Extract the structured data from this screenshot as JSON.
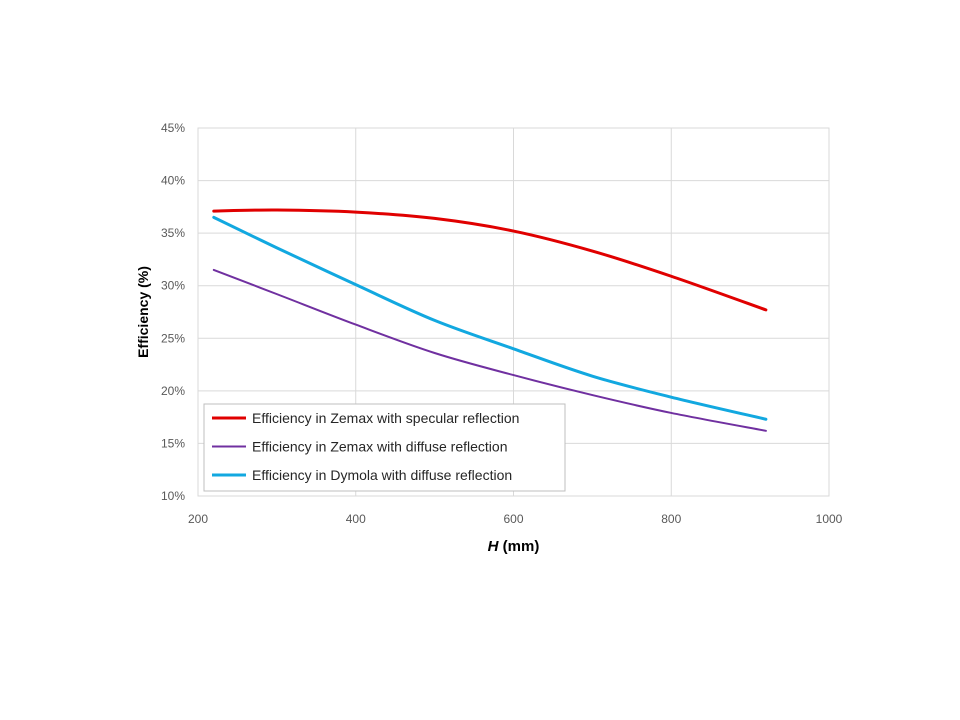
{
  "chart_data": {
    "type": "line",
    "xlabel_italic": "H",
    "xlabel_rest": " (mm)",
    "ylabel": "Efficiency (%)",
    "xlim": [
      200,
      1000
    ],
    "ylim": [
      10,
      45
    ],
    "x_ticks": [
      200,
      400,
      600,
      800,
      1000
    ],
    "y_ticks": [
      10,
      15,
      20,
      25,
      30,
      35,
      40,
      45
    ],
    "y_tick_labels": [
      "10%",
      "15%",
      "20%",
      "25%",
      "30%",
      "35%",
      "40%",
      "45%"
    ],
    "x_tick_labels": [
      "200",
      "400",
      "600",
      "800",
      "1000"
    ],
    "grid": true,
    "legend_position": "bottom-left",
    "series": [
      {
        "name": "Efficiency in Zemax with specular reflection",
        "color": "#e00000",
        "x": [
          220,
          300,
          400,
          500,
          600,
          700,
          800,
          920
        ],
        "y": [
          37.1,
          37.2,
          37.0,
          36.4,
          35.2,
          33.3,
          30.9,
          27.7
        ]
      },
      {
        "name": "Efficiency in Zemax with diffuse reflection",
        "color": "#7030a0",
        "x": [
          220,
          300,
          400,
          500,
          600,
          700,
          800,
          920
        ],
        "y": [
          31.5,
          29.2,
          26.3,
          23.6,
          21.5,
          19.6,
          17.9,
          16.2
        ]
      },
      {
        "name": "Efficiency in Dymola with diffuse reflection",
        "color": "#12a8e0",
        "x": [
          220,
          300,
          400,
          500,
          600,
          700,
          800,
          920
        ],
        "y": [
          36.5,
          33.6,
          30.1,
          26.7,
          24.0,
          21.4,
          19.4,
          17.3
        ]
      }
    ]
  }
}
